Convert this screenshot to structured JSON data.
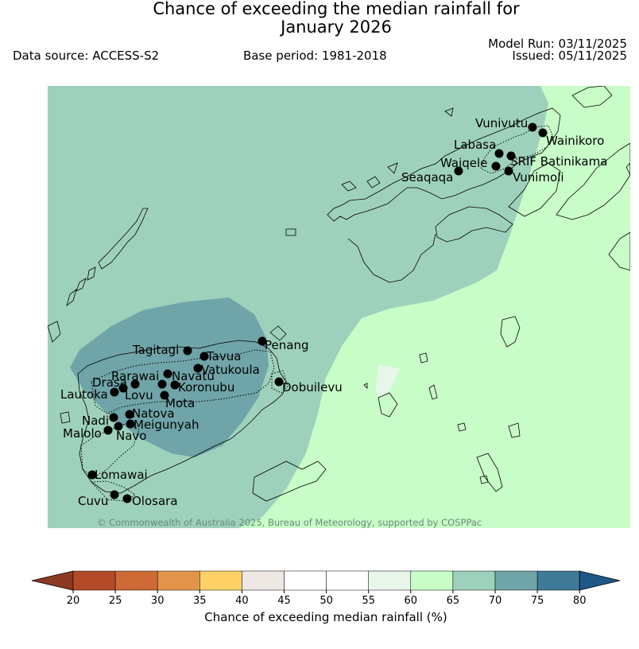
{
  "title_line1": "Chance of exceeding the median rainfall for",
  "title_line2": "January 2026",
  "data_source": "Data source: ACCESS-S2",
  "base_period": "Base period: 1981-2018",
  "model_run": "Model Run: 03/11/2025",
  "issued": "Issued: 05/11/2025",
  "copyright": "© Commonwealth of Australia 2025, Bureau of Meteorology, supported by COSPPac",
  "colors": {
    "c60_65": "#c8fdc8",
    "c65_70": "#9ed1bb",
    "c70_75": "#6fa4a8",
    "c55_60": "#e8f6ea"
  },
  "colorbar": {
    "label": "Chance of exceeding median rainfall (%)",
    "ticks": [
      "20",
      "25",
      "30",
      "35",
      "40",
      "45",
      "50",
      "55",
      "60",
      "65",
      "70",
      "75",
      "80"
    ],
    "colors": [
      "#b34a27",
      "#cd6a35",
      "#e2954a",
      "#fdd166",
      "#ede8e4",
      "#ffffff",
      "#ffffff",
      "#e8f6ea",
      "#c8fdc8",
      "#9ed1bb",
      "#6fa4a8",
      "#3f7a96"
    ],
    "under_color": "#8c3a22",
    "over_color": "#1d5886"
  },
  "stations": [
    {
      "name": "Vunivutu"
    },
    {
      "name": "Wainikoro"
    },
    {
      "name": "Labasa"
    },
    {
      "name": "SRIF Batinikama"
    },
    {
      "name": "Waiqele"
    },
    {
      "name": "Seaqaqa"
    },
    {
      "name": "Vunimoli"
    },
    {
      "name": "Tagitagi"
    },
    {
      "name": "Penang"
    },
    {
      "name": "Tavua"
    },
    {
      "name": "Vatukoula"
    },
    {
      "name": "Rarawai"
    },
    {
      "name": "Navatu"
    },
    {
      "name": "Drasa"
    },
    {
      "name": "Koronubu"
    },
    {
      "name": "Dobuilevu"
    },
    {
      "name": "Lautoka"
    },
    {
      "name": "Lovu"
    },
    {
      "name": "Mota"
    },
    {
      "name": "Natova"
    },
    {
      "name": "Nadi"
    },
    {
      "name": "Meigunyah"
    },
    {
      "name": "Malolo"
    },
    {
      "name": "Navo"
    },
    {
      "name": "Lomawai"
    },
    {
      "name": "Cuvu"
    },
    {
      "name": "Olosara"
    }
  ]
}
